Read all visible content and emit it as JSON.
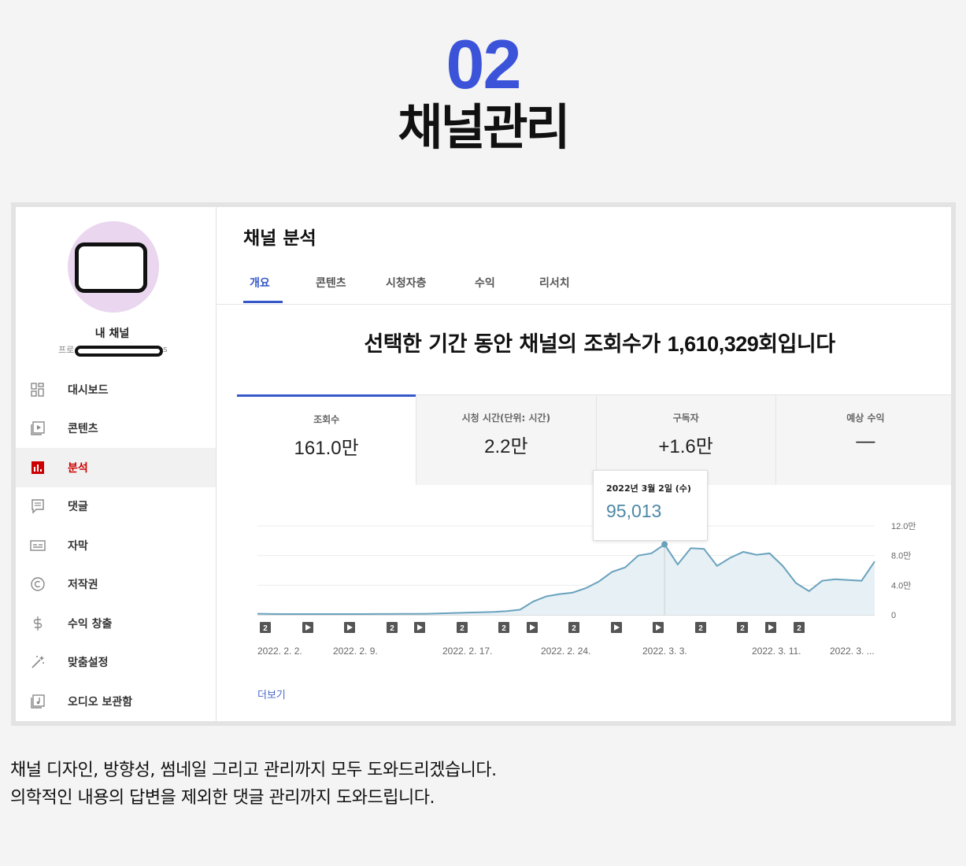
{
  "hero": {
    "number": "02",
    "title": "채널관리"
  },
  "sidebar": {
    "channel_name": "내 채널",
    "channel_sub_prefix": "프로",
    "channel_sub_suffix": "s",
    "items": [
      {
        "label": "대시보드",
        "icon": "dashboard-icon"
      },
      {
        "label": "콘텐츠",
        "icon": "content-icon"
      },
      {
        "label": "분석",
        "icon": "analytics-icon",
        "active": true
      },
      {
        "label": "댓글",
        "icon": "comments-icon"
      },
      {
        "label": "자막",
        "icon": "subtitles-icon"
      },
      {
        "label": "저작권",
        "icon": "copyright-icon"
      },
      {
        "label": "수익 창출",
        "icon": "dollar-icon"
      },
      {
        "label": "맞춤설정",
        "icon": "magic-wand-icon"
      },
      {
        "label": "오디오 보관함",
        "icon": "audio-library-icon"
      }
    ]
  },
  "main": {
    "title": "채널 분석",
    "tabs": [
      {
        "label": "개요",
        "active": true
      },
      {
        "label": "콘텐츠"
      },
      {
        "label": "시청자층"
      },
      {
        "label": "수익"
      },
      {
        "label": "리서치"
      }
    ],
    "headline_prefix": "선택한 기간 동안 채널의 조회수가 ",
    "headline_number": "1,610,329",
    "headline_suffix": "회입니다",
    "metrics": [
      {
        "label": "조회수",
        "value": "161.0만"
      },
      {
        "label": "시청 시간(단위: 시간)",
        "value": "2.2만"
      },
      {
        "label": "구독자",
        "value": "+1.6만"
      },
      {
        "label": "예상 수익",
        "value": "—"
      }
    ],
    "tooltip": {
      "date": "2022년 3월 2일 (수)",
      "value": "95,013"
    },
    "more_link": "더보기"
  },
  "chart_data": {
    "type": "area",
    "ylabels": [
      "12.0만",
      "8.0만",
      "4.0만",
      "0"
    ],
    "ylim": [
      0,
      120000
    ],
    "xlabels": [
      "2022. 2. 2.",
      "2022. 2. 9.",
      "2022. 2. 17.",
      "2022. 2. 24.",
      "2022. 3. 3.",
      "2022. 3. 11.",
      "2022. 3. ..."
    ],
    "series": [
      {
        "values": [
          1500,
          1200,
          1000,
          1000,
          1000,
          1000,
          1000,
          1100,
          1100,
          1200,
          1200,
          1300,
          1300,
          1500,
          2000,
          2500,
          3000,
          3500,
          4000,
          5000,
          7000,
          18000,
          25000,
          28000,
          30000,
          36000,
          45000,
          58000,
          64000,
          80000,
          83000,
          95013,
          68000,
          90000,
          89000,
          66000,
          77000,
          85000,
          81000,
          83000,
          66000,
          43000,
          32000,
          46000,
          48000,
          47000,
          46000,
          72000
        ]
      }
    ],
    "markers": [
      "2",
      "play",
      "play",
      "2",
      "play",
      "2",
      "2",
      "play",
      "2",
      "play",
      "play",
      "2",
      "2",
      "play",
      "2"
    ],
    "grid": true
  },
  "footer": {
    "line1": "채널 디자인, 방향성, 썸네일  그리고 관리까지 모두 도와드리겠습니다.",
    "line2": "의학적인 내용의 답변을 제외한 댓글 관리까지 도와드립니다."
  }
}
